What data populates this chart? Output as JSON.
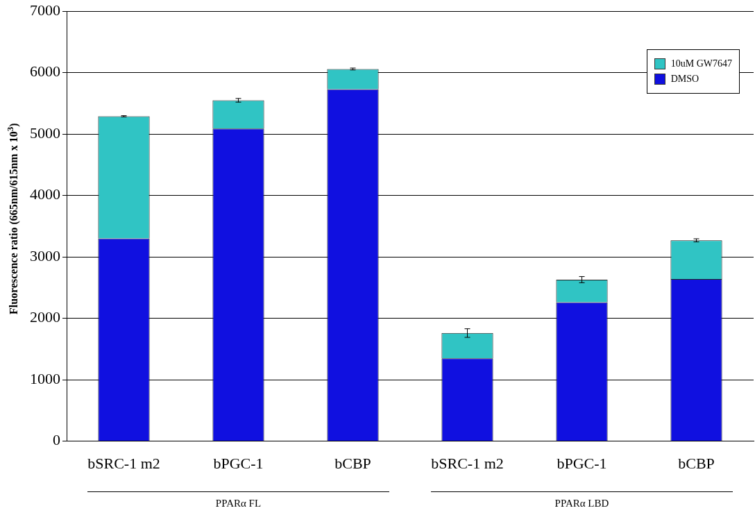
{
  "chart_data": {
    "type": "bar",
    "stacked": true,
    "ylabel": "Fluorescence ratio (665nm/615nm x 10$^{3}$)",
    "categories": [
      "bSRC-1 m2",
      "bPGC-1",
      "bCBP",
      "bSRC-1 m2",
      "bPGC-1",
      "bCBP"
    ],
    "series": [
      {
        "name": "DMSO",
        "color": "#1010e0",
        "values": [
          3300,
          5090,
          5730,
          1350,
          2260,
          2640
        ]
      },
      {
        "name": "10uM GW7647",
        "color": "#30c4c4",
        "values": [
          1990,
          460,
          330,
          410,
          370,
          630
        ],
        "errors": [
          10,
          30,
          15,
          70,
          50,
          25
        ]
      }
    ],
    "ylim": [
      0,
      7000
    ],
    "yticks": [
      0,
      1000,
      2000,
      3000,
      4000,
      5000,
      6000,
      7000
    ],
    "grid": "y",
    "legend": "top right",
    "annotations": [
      "PPARα FL",
      "PPARα LBD"
    ]
  }
}
